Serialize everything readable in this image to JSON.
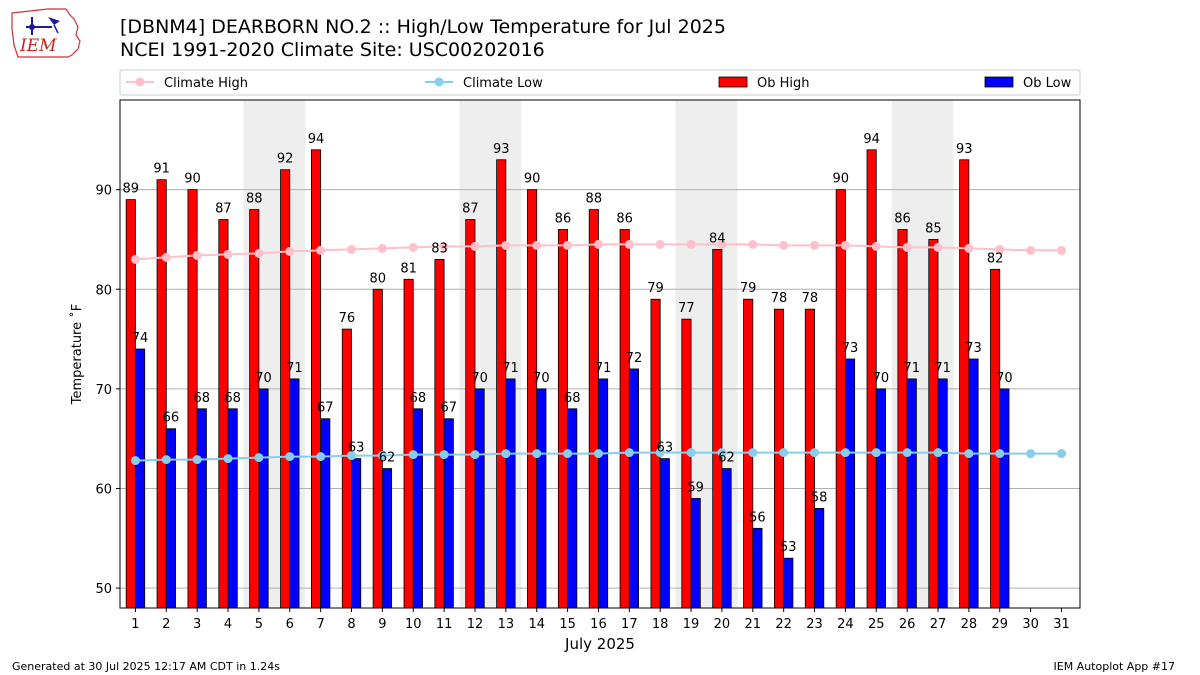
{
  "header": {
    "title": "[DBNM4] DEARBORN NO.2 :: High/Low Temperature for Jul 2025",
    "subtitle": "NCEI 1991-2020 Climate Site: USC00202016",
    "logo_text": "IEM"
  },
  "footer": {
    "left": "Generated at 30 Jul 2025 12:17 AM CDT in 1.24s",
    "right": "IEM Autoplot App #17"
  },
  "chart_data": {
    "type": "bar",
    "xlabel": "July 2025",
    "ylabel": "Temperature ˚F",
    "ylim": [
      48,
      99
    ],
    "yticks": [
      50,
      60,
      70,
      80,
      90
    ],
    "grid": "horizontal",
    "legend_placement": "top",
    "weekend_shading_days": [
      5,
      6,
      12,
      13,
      19,
      20,
      26,
      27
    ],
    "categories": [
      "1",
      "2",
      "3",
      "4",
      "5",
      "6",
      "7",
      "8",
      "9",
      "10",
      "11",
      "12",
      "13",
      "14",
      "15",
      "16",
      "17",
      "18",
      "19",
      "20",
      "21",
      "22",
      "23",
      "24",
      "25",
      "26",
      "27",
      "28",
      "29",
      "30",
      "31"
    ],
    "series": [
      {
        "name": "Climate High",
        "kind": "line",
        "color": "#ffc0cb",
        "values": [
          83.0,
          83.2,
          83.4,
          83.5,
          83.6,
          83.8,
          83.9,
          84.0,
          84.1,
          84.2,
          84.3,
          84.3,
          84.4,
          84.4,
          84.4,
          84.5,
          84.5,
          84.5,
          84.5,
          84.5,
          84.5,
          84.4,
          84.4,
          84.4,
          84.3,
          84.2,
          84.2,
          84.1,
          84.0,
          83.9,
          83.9
        ]
      },
      {
        "name": "Climate Low",
        "kind": "line",
        "color": "#87ceeb",
        "values": [
          62.8,
          62.9,
          62.9,
          63.0,
          63.1,
          63.2,
          63.2,
          63.3,
          63.3,
          63.4,
          63.4,
          63.4,
          63.5,
          63.5,
          63.5,
          63.5,
          63.6,
          63.6,
          63.6,
          63.6,
          63.6,
          63.6,
          63.6,
          63.6,
          63.6,
          63.6,
          63.6,
          63.5,
          63.5,
          63.5,
          63.5
        ]
      },
      {
        "name": "Ob High",
        "kind": "bar",
        "color": "#ff0000",
        "values": [
          89,
          91,
          90,
          87,
          88,
          92,
          94,
          76,
          80,
          81,
          83,
          87,
          93,
          90,
          86,
          88,
          86,
          79,
          77,
          84,
          79,
          78,
          78,
          90,
          94,
          86,
          85,
          93,
          82,
          null,
          null
        ]
      },
      {
        "name": "Ob Low",
        "kind": "bar",
        "color": "#0000ff",
        "values": [
          74,
          66,
          68,
          68,
          70,
          71,
          67,
          63,
          62,
          68,
          67,
          70,
          71,
          70,
          68,
          71,
          72,
          63,
          59,
          62,
          56,
          53,
          58,
          73,
          70,
          71,
          71,
          73,
          70,
          null,
          null
        ]
      }
    ]
  }
}
